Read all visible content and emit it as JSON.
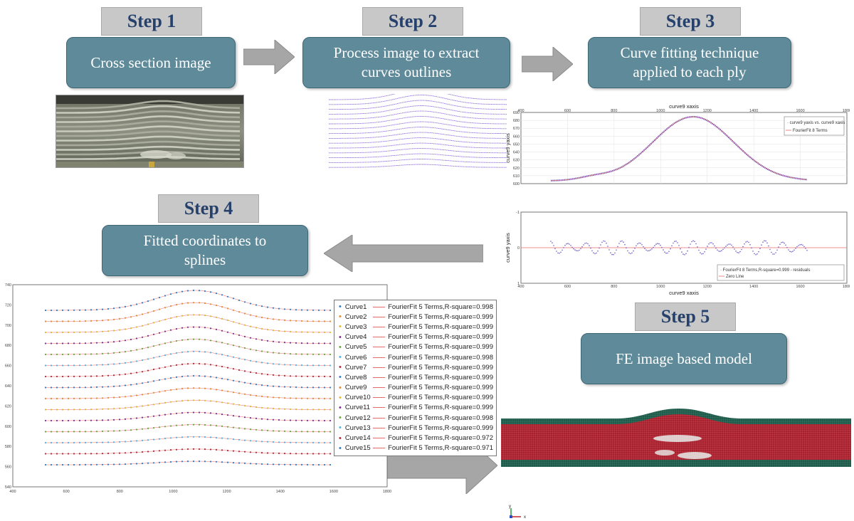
{
  "steps": [
    {
      "tab": "Step 1",
      "box": "Cross section image"
    },
    {
      "tab": "Step 2",
      "box_lines": [
        "Process image to extract",
        "curves outlines"
      ]
    },
    {
      "tab": "Step 3",
      "box_lines": [
        "Curve fitting technique",
        "applied to each ply"
      ]
    },
    {
      "tab": "Step 4",
      "box_lines": [
        "Fitted coordinates to",
        "splines"
      ]
    },
    {
      "tab": "Step 5",
      "box": "FE image based model"
    }
  ],
  "fit_plot": {
    "title": "curve9 xaxis",
    "ylabel": "curve9 yaxis",
    "legend": [
      "curve9 yaxis vs. curve9 xaxis",
      "FourierFit 8 Terms"
    ],
    "xticks": [
      "400",
      "600",
      "800",
      "1000",
      "1200",
      "1400",
      "1600",
      "1800"
    ],
    "yticks": [
      "600",
      "610",
      "620",
      "630",
      "640",
      "650",
      "660",
      "670",
      "680",
      "690"
    ]
  },
  "residual_plot": {
    "xlabel": "curve9 xaxis",
    "ylabel": "curve9 yaxis",
    "legend": [
      "FourierFit 8 Terms,R-square=0.999 - residuals",
      "Zero Line"
    ],
    "xticks": [
      "400",
      "600",
      "800",
      "1000",
      "1200",
      "1400",
      "1600",
      "1800"
    ],
    "yticks": [
      "1",
      "0",
      "-1"
    ]
  },
  "splines_plot": {
    "xticks": [
      "400",
      "600",
      "800",
      "1000",
      "1200",
      "1400",
      "1600",
      "1800"
    ],
    "yticks": [
      "540",
      "560",
      "580",
      "600",
      "620",
      "640",
      "660",
      "680",
      "700",
      "720",
      "740"
    ],
    "legend": [
      {
        "curve": "Curve1",
        "fit": "FourierFit 5 Terms,R-square=0.998",
        "color": "#2f79c5"
      },
      {
        "curve": "Curve2",
        "fit": "FourierFit 5 Terms,R-square=0.999",
        "color": "#e5882c"
      },
      {
        "curve": "Curve3",
        "fit": "FourierFit 5 Terms,R-square=0.999",
        "color": "#d9b82a"
      },
      {
        "curve": "Curve4",
        "fit": "FourierFit 5 Terms,R-square=0.999",
        "color": "#7b2e8c"
      },
      {
        "curve": "Curve5",
        "fit": "FourierFit 5 Terms,R-square=0.999",
        "color": "#6aa13a"
      },
      {
        "curve": "Curve6",
        "fit": "FourierFit 5 Terms,R-square=0.998",
        "color": "#4fb0e0"
      },
      {
        "curve": "Curve7",
        "fit": "FourierFit 5 Terms,R-square=0.999",
        "color": "#b3263a"
      },
      {
        "curve": "Curve8",
        "fit": "FourierFit 5 Terms,R-square=0.999",
        "color": "#2f79c5"
      },
      {
        "curve": "Curve9",
        "fit": "FourierFit 5 Terms,R-square=0.999",
        "color": "#e5882c"
      },
      {
        "curve": "Curve10",
        "fit": "FourierFit 5 Terms,R-square=0.999",
        "color": "#d9b82a"
      },
      {
        "curve": "Curve11",
        "fit": "FourierFit 5 Terms,R-square=0.999",
        "color": "#7b2e8c"
      },
      {
        "curve": "Curve12",
        "fit": "FourierFit 5 Terms,R-square=0.998",
        "color": "#6aa13a"
      },
      {
        "curve": "Curve13",
        "fit": "FourierFit 5 Terms,R-square=0.999",
        "color": "#4fb0e0"
      },
      {
        "curve": "Curve14",
        "fit": "FourierFit 5 Terms,R-square=0.972",
        "color": "#b3263a"
      },
      {
        "curve": "Curve15",
        "fit": "FourierFit 5 Terms,R-square=0.971",
        "color": "#2f79c5"
      }
    ]
  },
  "axes_triad": {
    "y": "y",
    "x": "x"
  },
  "colors": {
    "box_fill": "#5f8a99",
    "tab_fill": "#c8c8c8",
    "tab_text": "#26416b",
    "arrow": "#a6a6a6",
    "mesh_red": "#a8202c",
    "mesh_green": "#1f5a4a",
    "fit_line": "#e76a6a",
    "points": "#6a5acd"
  }
}
